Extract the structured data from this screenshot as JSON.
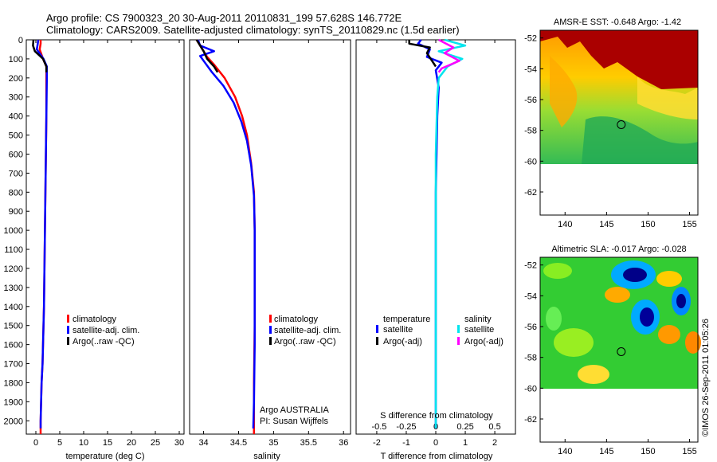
{
  "header": {
    "line1": "Argo profile: CS 7900323_20 30-Aug-2011 20110831_199 57.628S 146.772E",
    "line2": "Climatology: CARS2009. Satellite-adjusted climatology: synTS_20110829.nc (1.5d earlier)"
  },
  "side_text": "©IMOS 26-Sep-2011 01:05:26",
  "chart_data": [
    {
      "type": "line",
      "id": "temperature",
      "xlabel": "temperature (deg C)",
      "ylabel": "",
      "xlim": [
        -2,
        31
      ],
      "ylim": [
        2070,
        0
      ],
      "xticks": [
        0,
        5,
        10,
        15,
        20,
        25,
        30
      ],
      "yticks": [
        0,
        100,
        200,
        300,
        400,
        500,
        600,
        700,
        800,
        900,
        1000,
        1100,
        1200,
        1300,
        1400,
        1500,
        1600,
        1700,
        1800,
        1900,
        2000
      ],
      "legend": [
        "climatology",
        "satellite-adj. clim.",
        "Argo(..raw -QC)"
      ],
      "series": [
        {
          "name": "climatology",
          "color": "#ff0000",
          "x": [
            1.0,
            1.0,
            0.8,
            1.5,
            2.2,
            2.2,
            2.2,
            2.1,
            2.0,
            1.9,
            1.8,
            1.7,
            1.6,
            1.5,
            1.4,
            1.2,
            1.0,
            1.0
          ],
          "y": [
            0,
            20,
            50,
            100,
            140,
            200,
            400,
            600,
            800,
            1000,
            1200,
            1400,
            1500,
            1600,
            1700,
            1800,
            2000,
            2070
          ]
        },
        {
          "name": "satellite-adj. clim.",
          "color": "#0000ff",
          "x": [
            0.5,
            0.4,
            0.2,
            1.6,
            2.3,
            2.3,
            2.2,
            2.1,
            2.0,
            1.9,
            1.8,
            1.7,
            1.6,
            1.5,
            1.4,
            1.2,
            1.0,
            1.0
          ],
          "y": [
            0,
            20,
            50,
            100,
            140,
            200,
            400,
            600,
            800,
            1000,
            1200,
            1400,
            1500,
            1600,
            1700,
            1800,
            2000,
            2040
          ]
        },
        {
          "name": "Argo(..raw -QC)",
          "color": "#000000",
          "x": [
            -0.5,
            -0.6,
            -0.2,
            1.5,
            2.2,
            2.2
          ],
          "y": [
            0,
            30,
            60,
            100,
            140,
            170
          ]
        }
      ]
    },
    {
      "type": "line",
      "id": "salinity",
      "xlabel": "salinity",
      "ylabel": "",
      "xlim": [
        33.8,
        36.1
      ],
      "ylim": [
        2070,
        0
      ],
      "xticks": [
        34,
        34.5,
        35,
        35.5,
        36
      ],
      "legend": [
        "climatology",
        "satellite-adj. clim.",
        "Argo(..raw -QC)"
      ],
      "annotation": [
        "Argo AUSTRALIA",
        "PI: Susan Wijffels"
      ],
      "series": [
        {
          "name": "climatology",
          "color": "#ff0000",
          "x": [
            33.9,
            33.95,
            34.0,
            34.05,
            34.15,
            34.3,
            34.45,
            34.55,
            34.62,
            34.68,
            34.72,
            34.73,
            34.73,
            34.73,
            34.72,
            34.72,
            34.72
          ],
          "y": [
            0,
            30,
            60,
            90,
            130,
            200,
            300,
            400,
            500,
            650,
            800,
            1000,
            1200,
            1500,
            1800,
            2000,
            2070
          ]
        },
        {
          "name": "satellite-adj. clim.",
          "color": "#0000ff",
          "x": [
            33.92,
            33.95,
            34.15,
            33.95,
            34.02,
            34.12,
            34.28,
            34.43,
            34.54,
            34.62,
            34.68,
            34.72,
            34.73,
            34.73,
            34.73,
            34.72,
            34.71
          ],
          "y": [
            0,
            30,
            60,
            85,
            120,
            170,
            240,
            330,
            430,
            530,
            660,
            820,
            1000,
            1300,
            1600,
            1900,
            2040
          ]
        },
        {
          "name": "Argo(..raw -QC)",
          "color": "#000000",
          "x": [
            33.9,
            33.95,
            34.0,
            34.05,
            34.15,
            34.2
          ],
          "y": [
            0,
            30,
            60,
            100,
            140,
            170
          ]
        }
      ]
    },
    {
      "type": "line",
      "id": "difference",
      "xlabel": "T difference from climatology",
      "x2label": "S difference from climatology",
      "ylabel": "",
      "xlim": [
        -2.7,
        2.7
      ],
      "ylim": [
        2070,
        0
      ],
      "xticks": [
        -2,
        -1,
        0,
        1,
        2
      ],
      "x2ticks": [
        "-0.5",
        "-0.25",
        "0",
        "0.25",
        "0.5"
      ],
      "legend": {
        "temperature_heading": "temperature",
        "salinity_heading": "salinity",
        "entries": [
          "satellite",
          "Argo(-adj)",
          "satellite",
          "Argo(-adj)"
        ]
      },
      "series": [
        {
          "name": "satellite",
          "color": "#0000ff",
          "x": [
            -0.5,
            -0.6,
            -0.2,
            -0.3,
            0.2,
            0.0,
            0.1,
            0.05,
            0.0,
            0.0,
            0.0
          ],
          "y": [
            0,
            20,
            50,
            90,
            120,
            160,
            250,
            400,
            800,
            1500,
            2040
          ]
        },
        {
          "name": "Argo(-adj)",
          "color": "#000000",
          "x": [
            -0.9,
            -0.9,
            -0.2,
            -0.3,
            0.0
          ],
          "y": [
            0,
            20,
            40,
            70,
            140
          ]
        },
        {
          "name": "satellite",
          "color": "#00e5ee",
          "x": [
            0.3,
            1.0,
            0.1,
            0.9,
            0.4,
            0.1,
            0.05,
            0.0,
            0.0,
            0.0
          ],
          "y": [
            0,
            30,
            60,
            100,
            140,
            200,
            300,
            600,
            1500,
            2040
          ]
        },
        {
          "name": "Argo(-adj)",
          "color": "#ff00ff",
          "x": [
            0.1,
            0.6,
            0.3,
            0.8,
            0.2,
            0.1
          ],
          "y": [
            0,
            40,
            70,
            110,
            150,
            170
          ]
        }
      ]
    },
    {
      "type": "heatmap",
      "id": "sst-map",
      "title": "AMSR-E SST: -0.648 Argo: -1.42",
      "xlim": [
        137,
        156
      ],
      "ylim": [
        -63.5,
        -51.5
      ],
      "xticks": [
        140,
        145,
        150,
        155
      ],
      "yticks": [
        -52,
        -54,
        -56,
        -58,
        -60,
        -62
      ],
      "marker": {
        "lon": 146.77,
        "lat": -57.63
      }
    },
    {
      "type": "heatmap",
      "id": "sla-map",
      "title": "Altimetric SLA: -0.017 Argo: -0.028",
      "xlim": [
        137,
        156
      ],
      "ylim": [
        -63.5,
        -51.5
      ],
      "xticks": [
        140,
        145,
        150,
        155
      ],
      "yticks": [
        -52,
        -54,
        -56,
        -58,
        -60,
        -62
      ],
      "marker": {
        "lon": 146.77,
        "lat": -57.63
      }
    }
  ]
}
